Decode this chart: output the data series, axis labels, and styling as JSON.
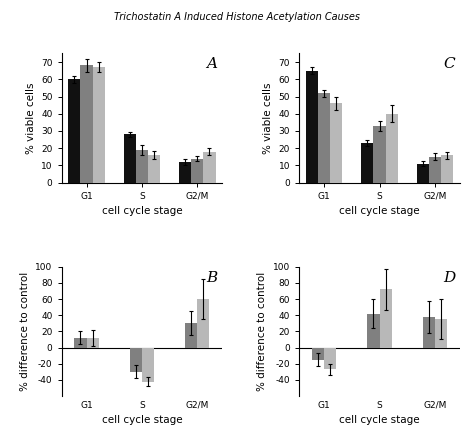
{
  "panel_A": {
    "label": "A",
    "categories": [
      "G1",
      "S",
      "G2/M"
    ],
    "bar_values": [
      [
        60,
        28,
        12
      ],
      [
        68,
        19,
        14
      ],
      [
        67,
        16,
        18
      ]
    ],
    "bar_errors": [
      [
        2,
        1.5,
        1.5
      ],
      [
        4,
        3,
        1.5
      ],
      [
        3,
        2.5,
        2
      ]
    ],
    "colors": [
      "#111111",
      "#808080",
      "#b8b8b8"
    ],
    "ylabel": "% viable cells",
    "xlabel": "cell cycle stage",
    "ylim": [
      0,
      75
    ],
    "yticks": [
      0,
      10,
      20,
      30,
      40,
      50,
      60,
      70
    ]
  },
  "panel_B": {
    "label": "B",
    "categories": [
      "G1",
      "S",
      "G2/M"
    ],
    "bar_values": [
      [
        12,
        -30,
        30
      ],
      [
        12,
        -42,
        60
      ]
    ],
    "bar_errors": [
      [
        8,
        8,
        15
      ],
      [
        10,
        5,
        25
      ]
    ],
    "colors": [
      "#808080",
      "#b8b8b8"
    ],
    "ylabel": "% difference to control",
    "xlabel": "cell cycle stage",
    "ylim": [
      -60,
      100
    ],
    "yticks": [
      -40,
      -20,
      0,
      20,
      40,
      60,
      80,
      100
    ]
  },
  "panel_C": {
    "label": "C",
    "categories": [
      "G1",
      "S",
      "G2/M"
    ],
    "bar_values": [
      [
        65,
        23,
        11
      ],
      [
        52,
        33,
        15
      ],
      [
        46,
        40,
        16
      ]
    ],
    "bar_errors": [
      [
        2,
        2,
        1.5
      ],
      [
        2,
        3,
        2
      ],
      [
        4,
        5,
        2
      ]
    ],
    "colors": [
      "#111111",
      "#808080",
      "#b8b8b8"
    ],
    "ylabel": "% viable cells",
    "xlabel": "cell cycle stage",
    "ylim": [
      0,
      75
    ],
    "yticks": [
      0,
      10,
      20,
      30,
      40,
      50,
      60,
      70
    ]
  },
  "panel_D": {
    "label": "D",
    "categories": [
      "G1",
      "S",
      "G2/M"
    ],
    "bar_values": [
      [
        -15,
        42,
        38
      ],
      [
        -27,
        72,
        35
      ]
    ],
    "bar_errors": [
      [
        8,
        18,
        20
      ],
      [
        7,
        25,
        25
      ]
    ],
    "colors": [
      "#808080",
      "#b8b8b8"
    ],
    "ylabel": "% difference to control",
    "xlabel": "cell cycle stage",
    "ylim": [
      -60,
      100
    ],
    "yticks": [
      -40,
      -20,
      0,
      20,
      40,
      60,
      80,
      100
    ]
  },
  "background_color": "#ffffff",
  "bar_width": 0.22,
  "tick_fontsize": 6.5,
  "label_fontsize": 7.5,
  "panel_label_fontsize": 11
}
